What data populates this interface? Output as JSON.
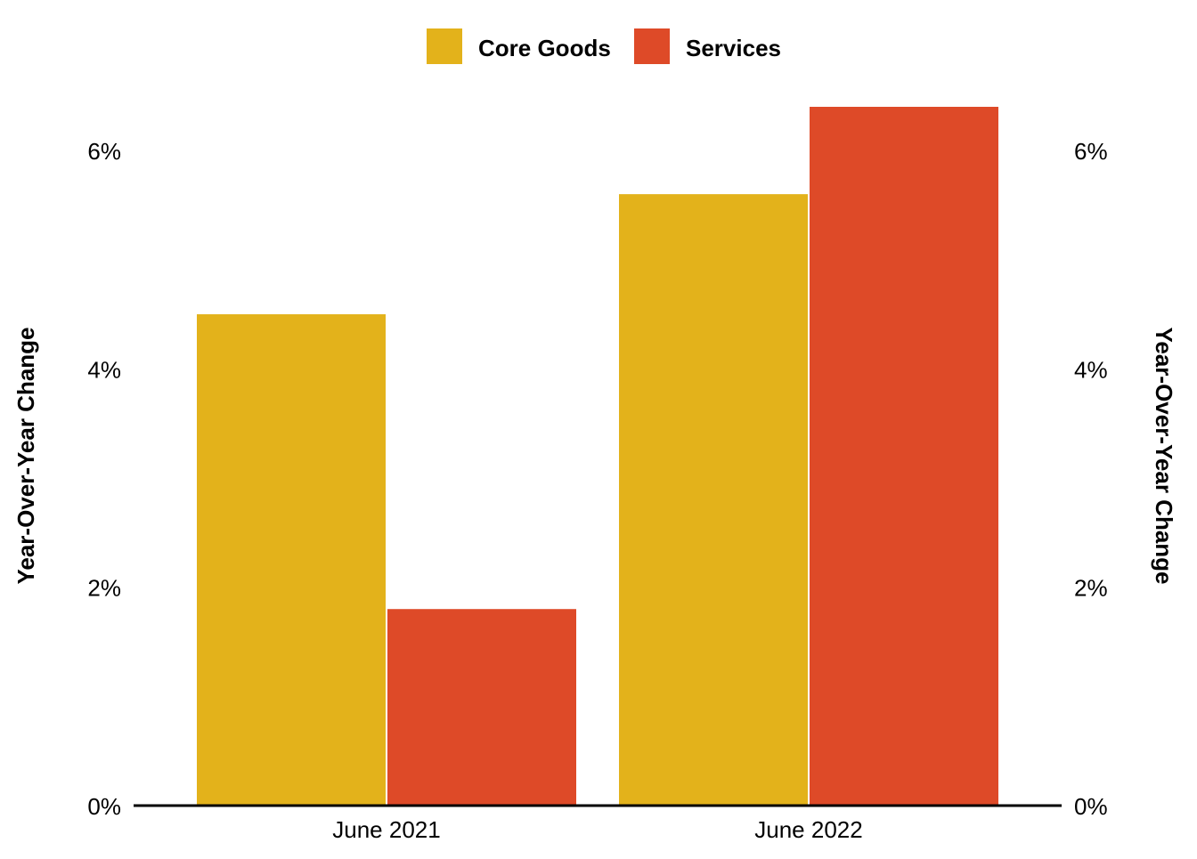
{
  "chart_data": {
    "type": "bar",
    "categories": [
      "June 2021",
      "June 2022"
    ],
    "series": [
      {
        "name": "Core Goods",
        "values": [
          4.5,
          5.6
        ],
        "color": "#e3b21b"
      },
      {
        "name": "Services",
        "values": [
          1.8,
          6.4
        ],
        "color": "#de4a28"
      }
    ],
    "ylabel": "Year-Over-Year Change",
    "ylabel_right": "Year-Over-Year Change",
    "ylim": [
      0,
      6.4
    ],
    "yticks": [
      {
        "value": 0,
        "label": "0%"
      },
      {
        "value": 2,
        "label": "2%"
      },
      {
        "value": 4,
        "label": "4%"
      },
      {
        "value": 6,
        "label": "6%"
      }
    ],
    "grid": false,
    "legend_position": "top-center",
    "axis_color": "#000000"
  }
}
